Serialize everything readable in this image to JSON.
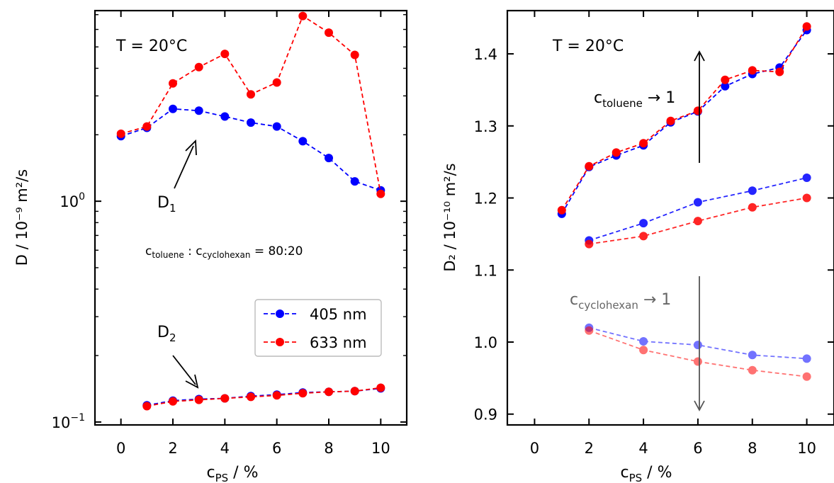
{
  "chart_data": [
    {
      "type": "line",
      "yscale": "log",
      "xlabel_main": "c",
      "xlabel_sub": "PS",
      "xlabel_tail": " / %",
      "ylabel": "D / 10⁻⁹ m²/s",
      "xlim": [
        -1,
        11
      ],
      "ylim": [
        0.097,
        7.3
      ],
      "x_ticks": [
        0,
        2,
        4,
        6,
        8,
        10
      ],
      "x_tick_labels": [
        "0",
        "2",
        "4",
        "6",
        "8",
        "10"
      ],
      "y_ticks": [
        1.0,
        0.1
      ],
      "y_tick_base": [
        "10",
        "10"
      ],
      "y_tick_exp": [
        "0",
        "−1"
      ],
      "annotations": {
        "temp": "T = 20°C",
        "d1_main": "D",
        "d1_sub": "1",
        "d2_main": "D",
        "d2_sub": "2",
        "ratio_c1": "c",
        "ratio_s1": "toluene",
        "ratio_colon": " : ",
        "ratio_c2": "c",
        "ratio_s2": "cyclohexan",
        "ratio_tail": " = 80:20"
      },
      "legend": {
        "position": "lower right"
      },
      "series": [
        {
          "name": "405 nm",
          "color": "#0000ff",
          "x": [
            0,
            1,
            2,
            3,
            4,
            5,
            6,
            7,
            8,
            9,
            10
          ],
          "y": [
            1.97,
            2.15,
            2.62,
            2.57,
            2.42,
            2.27,
            2.18,
            1.87,
            1.57,
            1.23,
            1.12
          ]
        },
        {
          "name": "633 nm",
          "color": "#ff0000",
          "x": [
            0,
            1,
            2,
            3,
            4,
            5,
            6,
            7,
            8,
            9,
            10
          ],
          "y": [
            2.02,
            2.18,
            3.42,
            4.05,
            4.65,
            3.05,
            3.45,
            6.9,
            5.8,
            4.6,
            1.08
          ]
        },
        {
          "name": "",
          "color": "#0000ff",
          "x": [
            1,
            2,
            3,
            4,
            5,
            6,
            7,
            8,
            9,
            10
          ],
          "y": [
            0.119,
            0.125,
            0.127,
            0.128,
            0.131,
            0.133,
            0.136,
            0.137,
            0.138,
            0.142
          ]
        },
        {
          "name": "",
          "color": "#ff0000",
          "x": [
            1,
            2,
            3,
            4,
            5,
            6,
            7,
            8,
            9,
            10
          ],
          "y": [
            0.118,
            0.124,
            0.126,
            0.128,
            0.13,
            0.132,
            0.135,
            0.137,
            0.138,
            0.143
          ]
        }
      ]
    },
    {
      "type": "line",
      "yscale": "linear",
      "xlabel_main": "c",
      "xlabel_sub": "PS",
      "xlabel_tail": " / %",
      "ylabel": "D₂ / 10⁻¹⁰ m²/s",
      "xlim": [
        -1,
        11
      ],
      "ylim": [
        0.885,
        1.46
      ],
      "x_ticks": [
        0,
        2,
        4,
        6,
        8,
        10
      ],
      "x_tick_labels": [
        "0",
        "2",
        "4",
        "6",
        "8",
        "10"
      ],
      "y_ticks": [
        0.9,
        1.0,
        1.1,
        1.2,
        1.3,
        1.4
      ],
      "y_tick_labels": [
        "0.9",
        "1.0",
        "1.1",
        "1.2",
        "1.3",
        "1.4"
      ],
      "annotations": {
        "temp": "T = 20°C",
        "up_main": "c",
        "up_sub": "toluene",
        "up_tail": " → 1",
        "down_main": "c",
        "down_sub": "cyclohexan",
        "down_tail": " → 1"
      },
      "series": [
        {
          "name": "",
          "color": "#0000ff",
          "opacity": 1.0,
          "x": [
            1,
            2,
            3,
            4,
            5,
            6,
            7,
            8,
            9,
            10
          ],
          "y": [
            1.178,
            1.243,
            1.259,
            1.273,
            1.305,
            1.32,
            1.355,
            1.372,
            1.381,
            1.433
          ]
        },
        {
          "name": "",
          "color": "#ff0000",
          "opacity": 1.0,
          "x": [
            1,
            2,
            3,
            4,
            5,
            6,
            7,
            8,
            9,
            10
          ],
          "y": [
            1.183,
            1.244,
            1.263,
            1.276,
            1.307,
            1.321,
            1.364,
            1.377,
            1.375,
            1.438
          ]
        },
        {
          "name": "",
          "color": "#0000ff",
          "opacity": 0.85,
          "x": [
            2,
            4,
            6,
            8,
            10
          ],
          "y": [
            1.141,
            1.165,
            1.194,
            1.21,
            1.228
          ]
        },
        {
          "name": "",
          "color": "#ff0000",
          "opacity": 0.85,
          "x": [
            2,
            4,
            6,
            8,
            10
          ],
          "y": [
            1.136,
            1.147,
            1.168,
            1.187,
            1.2
          ]
        },
        {
          "name": "",
          "color": "#0000ff",
          "opacity": 0.55,
          "x": [
            2,
            4,
            6,
            8,
            10
          ],
          "y": [
            1.02,
            1.001,
            0.996,
            0.982,
            0.977
          ]
        },
        {
          "name": "",
          "color": "#ff0000",
          "opacity": 0.55,
          "x": [
            2,
            4,
            6,
            8,
            10
          ],
          "y": [
            1.016,
            0.989,
            0.973,
            0.961,
            0.952
          ]
        }
      ]
    }
  ]
}
